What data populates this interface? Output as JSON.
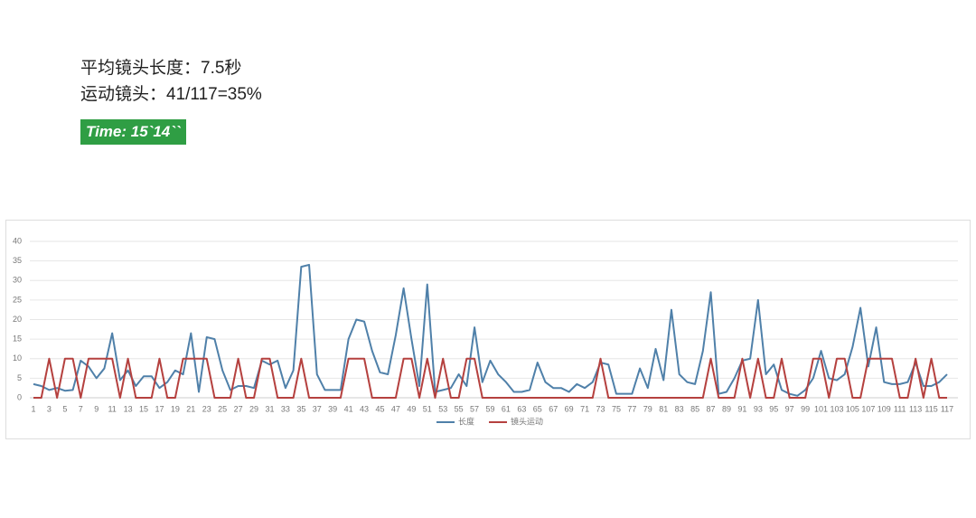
{
  "summary": {
    "avg_length": "平均镜头长度：7.5秒",
    "motion_ratio": "运动镜头：41/117=35%",
    "time": "Time: 15`14``"
  },
  "chart_data": {
    "type": "line",
    "categories": [
      1,
      null,
      3,
      null,
      5,
      null,
      7,
      null,
      9,
      null,
      11,
      null,
      13,
      null,
      15,
      null,
      17,
      null,
      19,
      null,
      21,
      null,
      23,
      null,
      25,
      null,
      27,
      null,
      29,
      null,
      31,
      null,
      33,
      null,
      35,
      null,
      37,
      null,
      39,
      null,
      41,
      null,
      43,
      null,
      45,
      null,
      47,
      null,
      49,
      null,
      51,
      null,
      53,
      null,
      55,
      null,
      57,
      null,
      59,
      null,
      61,
      null,
      63,
      null,
      65,
      null,
      67,
      null,
      69,
      null,
      71,
      null,
      73,
      null,
      75,
      null,
      77,
      null,
      79,
      null,
      81,
      null,
      83,
      null,
      85,
      null,
      87,
      null,
      89,
      null,
      91,
      null,
      93,
      null,
      95,
      null,
      97,
      null,
      99,
      null,
      101,
      null,
      103,
      null,
      105,
      null,
      107,
      null,
      109,
      null,
      111,
      null,
      113,
      null,
      115,
      null,
      117
    ],
    "series": [
      {
        "name": "长度",
        "color": "#4f80a9",
        "values": [
          3.5,
          3,
          2,
          2.5,
          1.8,
          2,
          9.5,
          8,
          5,
          7.5,
          16.5,
          4.5,
          7,
          3,
          5.5,
          5.5,
          2.5,
          4,
          7,
          6,
          16.5,
          1.5,
          15.5,
          15,
          7,
          2,
          3,
          3,
          2.5,
          9.5,
          8.5,
          9.5,
          2.5,
          7,
          33.5,
          34,
          6,
          2,
          2,
          2,
          15,
          20,
          19.5,
          12,
          6.5,
          6,
          16,
          28,
          15,
          3,
          29,
          1.5,
          2,
          2.5,
          6,
          3,
          18,
          4,
          9.5,
          6,
          4,
          1.5,
          1.5,
          2,
          9,
          4,
          2.5,
          2.5,
          1.5,
          3.5,
          2.5,
          4,
          9,
          8.5,
          1,
          1,
          1,
          7.5,
          2.5,
          12.5,
          4.5,
          22.5,
          6,
          4,
          3.5,
          12,
          27,
          1,
          1.5,
          5,
          9.5,
          10,
          25,
          6,
          8.5,
          2,
          1,
          0.5,
          2,
          5,
          12,
          5,
          4.5,
          6,
          13,
          23,
          8,
          18,
          4,
          3.5,
          3.5,
          4,
          9,
          3,
          3,
          4,
          6
        ]
      },
      {
        "name": "镜头运动",
        "color": "#b5413f",
        "values": [
          0,
          0,
          10,
          0,
          10,
          10,
          0,
          10,
          10,
          10,
          10,
          0,
          10,
          0,
          0,
          0,
          10,
          0,
          0,
          10,
          10,
          10,
          10,
          0,
          0,
          0,
          10,
          0,
          0,
          10,
          10,
          0,
          0,
          0,
          10,
          0,
          0,
          0,
          0,
          0,
          10,
          10,
          10,
          0,
          0,
          0,
          0,
          10,
          10,
          0,
          10,
          0,
          10,
          0,
          0,
          10,
          10,
          0,
          0,
          0,
          0,
          0,
          0,
          0,
          0,
          0,
          0,
          0,
          0,
          0,
          0,
          0,
          10,
          0,
          0,
          0,
          0,
          0,
          0,
          0,
          0,
          0,
          0,
          0,
          0,
          0,
          10,
          0,
          0,
          0,
          10,
          0,
          10,
          0,
          0,
          10,
          0,
          0,
          0,
          10,
          10,
          0,
          10,
          10,
          0,
          0,
          10,
          10,
          10,
          10,
          0,
          0,
          10,
          0,
          10,
          0,
          0
        ]
      }
    ],
    "ylim": [
      0,
      40
    ],
    "yticks": [
      0,
      5,
      10,
      15,
      20,
      25,
      30,
      35,
      40
    ],
    "grid": true,
    "legend": "bottom"
  }
}
